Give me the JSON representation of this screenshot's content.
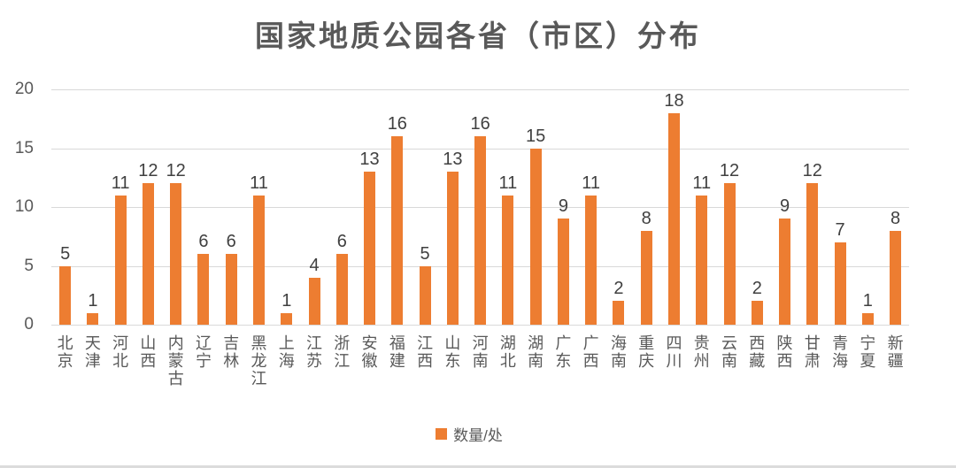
{
  "title": "国家地质公园各省（市区）分布",
  "legend": {
    "label": "数量/处",
    "color": "#ED7D31"
  },
  "chart_data": {
    "type": "bar",
    "title": "国家地质公园各省（市区）分布",
    "categories": [
      "北京",
      "天津",
      "河北",
      "山西",
      "内蒙古",
      "辽宁",
      "吉林",
      "黑龙江",
      "上海",
      "江苏",
      "浙江",
      "安徽",
      "福建",
      "江西",
      "山东",
      "河南",
      "湖北",
      "湖南",
      "广东",
      "广西",
      "海南",
      "重庆",
      "四川",
      "贵州",
      "云南",
      "西藏",
      "陕西",
      "甘肃",
      "青海",
      "宁夏",
      "新疆"
    ],
    "values": [
      5,
      1,
      11,
      12,
      12,
      6,
      6,
      11,
      1,
      4,
      6,
      13,
      16,
      5,
      13,
      16,
      11,
      15,
      9,
      11,
      2,
      8,
      18,
      11,
      12,
      2,
      9,
      12,
      7,
      1,
      8
    ],
    "xlabel": "",
    "ylabel": "",
    "ylim": [
      0,
      20
    ],
    "yticks": [
      0,
      5,
      10,
      15,
      20
    ],
    "grid": true,
    "data_labels": true,
    "legend_entries": [
      "数量/处"
    ],
    "legend_position": "bottom",
    "bar_color": "#ED7D31",
    "gridline_color": "#d9d9d9"
  }
}
